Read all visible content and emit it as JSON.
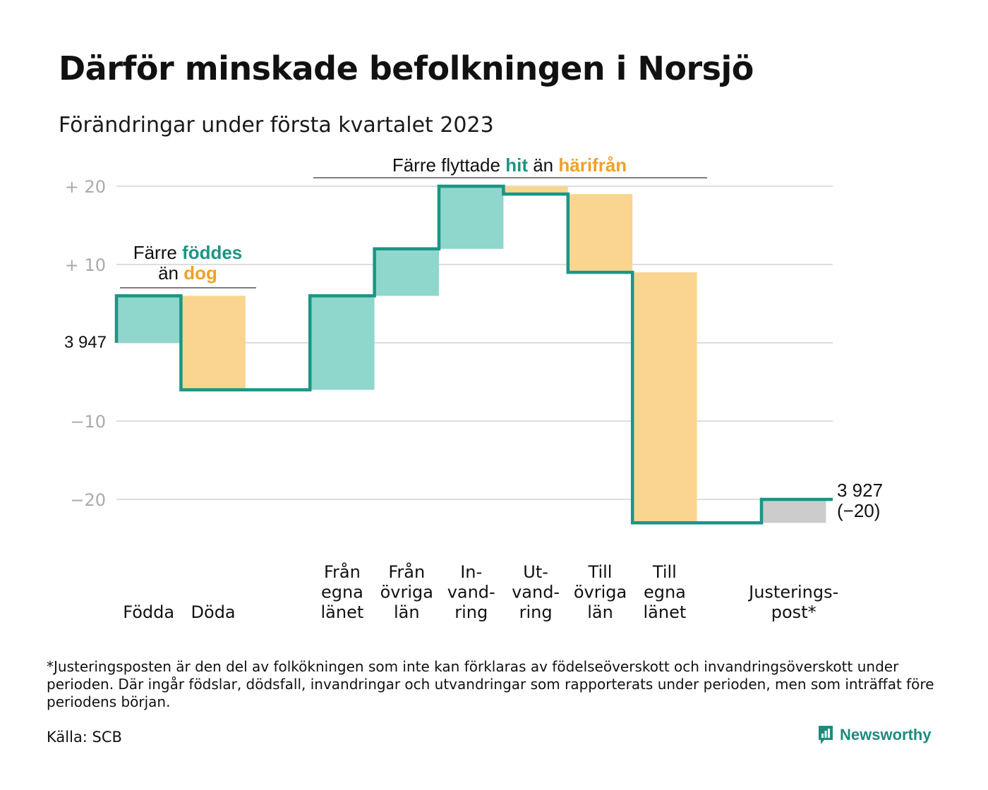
{
  "title": "Därför minskade befolkningen i Norsjö",
  "subtitle": "Förändringar under första kvartalet 2023",
  "colors": {
    "line": "#1b9584",
    "increase": "#8fd6cc",
    "decrease": "#fad58f",
    "adjustment": "#cccccc",
    "teal_text": "#1b9584",
    "orange_text": "#f0a02a",
    "grid": "#dddddd",
    "tick_text": "#aaaaaa"
  },
  "annotations": {
    "births": {
      "line1_pre": "Färre ",
      "line1_hl": "föddes",
      "line2_pre": "än ",
      "line2_hl": "dog"
    },
    "migration": {
      "pre": "Färre flyttade ",
      "hl1": "hit",
      "mid": " än ",
      "hl2": "härifrån"
    }
  },
  "start_label": "3 947",
  "end_label": {
    "line1": "3 927",
    "line2": "(−20)"
  },
  "chart_data": {
    "type": "waterfall",
    "start_value": 3947,
    "end_value": 3927,
    "total_change": -20,
    "ylim": [
      -23,
      20
    ],
    "yticks": [
      {
        "value": 20,
        "label": "+ 20"
      },
      {
        "value": 10,
        "label": "+ 10"
      },
      {
        "value": 0,
        "label": ""
      },
      {
        "value": -10,
        "label": "−10"
      },
      {
        "value": -20,
        "label": "−20"
      }
    ],
    "steps": [
      {
        "category": [
          "Födda"
        ],
        "value": 6,
        "kind": "increase"
      },
      {
        "category": [
          "Döda"
        ],
        "value": -12,
        "kind": "decrease"
      },
      {
        "category": [],
        "value": 0,
        "kind": "gap"
      },
      {
        "category": [
          "Från",
          "egna",
          "länet"
        ],
        "value": 12,
        "kind": "increase"
      },
      {
        "category": [
          "Från",
          "övriga",
          "län"
        ],
        "value": 6,
        "kind": "increase"
      },
      {
        "category": [
          "In-",
          "vand-",
          "ring"
        ],
        "value": 8,
        "kind": "increase"
      },
      {
        "category": [
          "Ut-",
          "vand-",
          "ring"
        ],
        "value": -1,
        "kind": "decrease"
      },
      {
        "category": [
          "Till",
          "övriga",
          "län"
        ],
        "value": -10,
        "kind": "decrease"
      },
      {
        "category": [
          "Till",
          "egna",
          "länet"
        ],
        "value": -32,
        "kind": "decrease"
      },
      {
        "category": [],
        "value": 0,
        "kind": "gap"
      },
      {
        "category": [
          "Justerings-",
          "post*"
        ],
        "value": 3,
        "kind": "adjustment"
      }
    ]
  },
  "footnote": "*Justeringsposten är den del av folkökningen som inte kan förklaras av födelseöverskott och invandringsöverskott under perioden. Där ingår födslar, dödsfall, invandringar och utvandringar som rapporterats under perioden, men som inträffat före periodens början.",
  "source": "Källa: SCB",
  "brand": {
    "name": "Newsworthy",
    "icon": "newsworthy-logo-icon"
  }
}
